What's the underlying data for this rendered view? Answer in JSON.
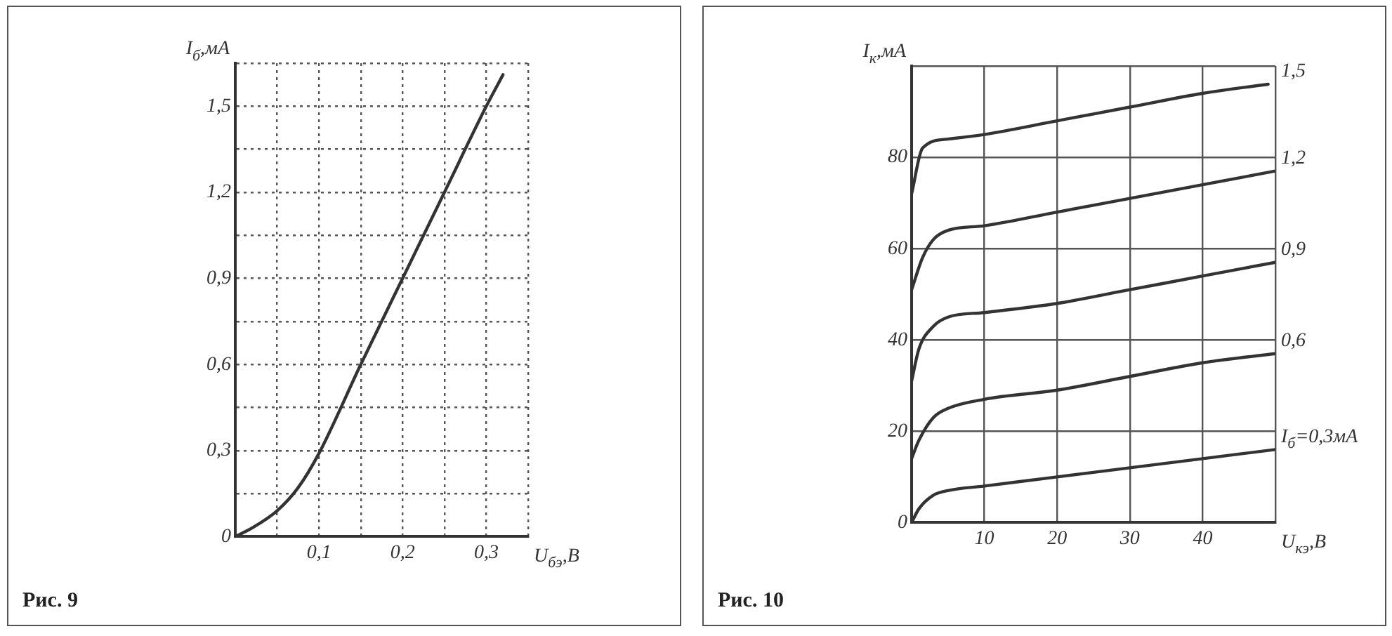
{
  "chart_data": [
    {
      "type": "line",
      "xlabel": "U$_{бэ}$,В",
      "ylabel": "I$_{б}$,мА",
      "annotations": [
        "Рис. 9"
      ],
      "grid": true,
      "line_style": "solid",
      "marker": "none",
      "legend": false,
      "xlim": [
        0,
        0.35
      ],
      "xticks": [
        {
          "value": 0,
          "label": null
        },
        {
          "value": 0.05,
          "label": null
        },
        {
          "value": 0.1,
          "label": "0,1"
        },
        {
          "value": 0.15,
          "label": null
        },
        {
          "value": 0.2,
          "label": "0,2"
        },
        {
          "value": 0.25,
          "label": null
        },
        {
          "value": 0.3,
          "label": "0,3"
        },
        {
          "value": 0.35,
          "label": null
        }
      ],
      "ylim": [
        0,
        1.65
      ],
      "yticks": [
        0,
        {
          "value": 0.15,
          "label": null
        },
        {
          "value": 0.3,
          "label": "0,3"
        },
        {
          "value": 0.45,
          "label": null
        },
        {
          "value": 0.6,
          "label": "0,6"
        },
        {
          "value": 0.75,
          "label": null
        },
        {
          "value": 0.9,
          "label": "0,9"
        },
        {
          "value": 1.05,
          "label": null
        },
        {
          "value": 1.2,
          "label": "1,2"
        },
        {
          "value": 1.35,
          "label": null
        },
        {
          "value": 1.5,
          "label": "1,5"
        },
        {
          "value": 1.65,
          "label": null
        }
      ],
      "series": [
        {
          "color": "#333333",
          "x": [
            0,
            0.02,
            0.05,
            0.075,
            0.1,
            0.15,
            0.2,
            0.25,
            0.3,
            0.32
          ],
          "values": [
            0,
            0.03,
            0.09,
            0.17,
            0.29,
            0.6,
            0.9,
            1.2,
            1.5,
            1.61
          ]
        }
      ]
    },
    {
      "type": "line",
      "xlabel": "U$_{кэ}$,В",
      "ylabel": "I$_{к}$,мА",
      "annotations": [
        "Рис. 10"
      ],
      "grid": true,
      "line_style": "solid",
      "marker": "none",
      "legend": false,
      "xlim": [
        0,
        50
      ],
      "xticks": [
        {
          "value": 0,
          "label": null
        },
        10,
        20,
        30,
        40,
        {
          "value": 50,
          "label": null
        }
      ],
      "ylim": [
        0,
        100
      ],
      "yticks": [
        0,
        20,
        40,
        60,
        80,
        {
          "value": 100,
          "label": null
        }
      ],
      "series": [
        {
          "name": "1,5",
          "color": "#333333",
          "x": [
            0,
            1.5,
            5,
            10,
            20,
            30,
            40,
            49
          ],
          "values": [
            72,
            82,
            84,
            85,
            88,
            91,
            94,
            96
          ]
        },
        {
          "name": "1,2",
          "color": "#333333",
          "x": [
            0,
            1.5,
            3,
            5,
            10,
            20,
            30,
            40,
            50
          ],
          "values": [
            51,
            58,
            62,
            64,
            65,
            68,
            71,
            74,
            77
          ]
        },
        {
          "name": "0,9",
          "color": "#333333",
          "x": [
            0,
            1,
            3,
            5,
            10,
            20,
            30,
            40,
            50
          ],
          "values": [
            31,
            38,
            43,
            45,
            46,
            48,
            51,
            54,
            57
          ]
        },
        {
          "name": "0,6",
          "color": "#333333",
          "x": [
            0,
            1,
            3,
            5,
            10,
            20,
            30,
            40,
            50
          ],
          "values": [
            14,
            18,
            23,
            25,
            27,
            29,
            32,
            35,
            37
          ]
        },
        {
          "name": "I$_{б}$=0,3мА",
          "color": "#333333",
          "x": [
            0,
            1,
            3,
            5,
            10,
            20,
            30,
            40,
            50
          ],
          "values": [
            0,
            3,
            6,
            7,
            8,
            10,
            12,
            14,
            16
          ]
        }
      ]
    }
  ]
}
